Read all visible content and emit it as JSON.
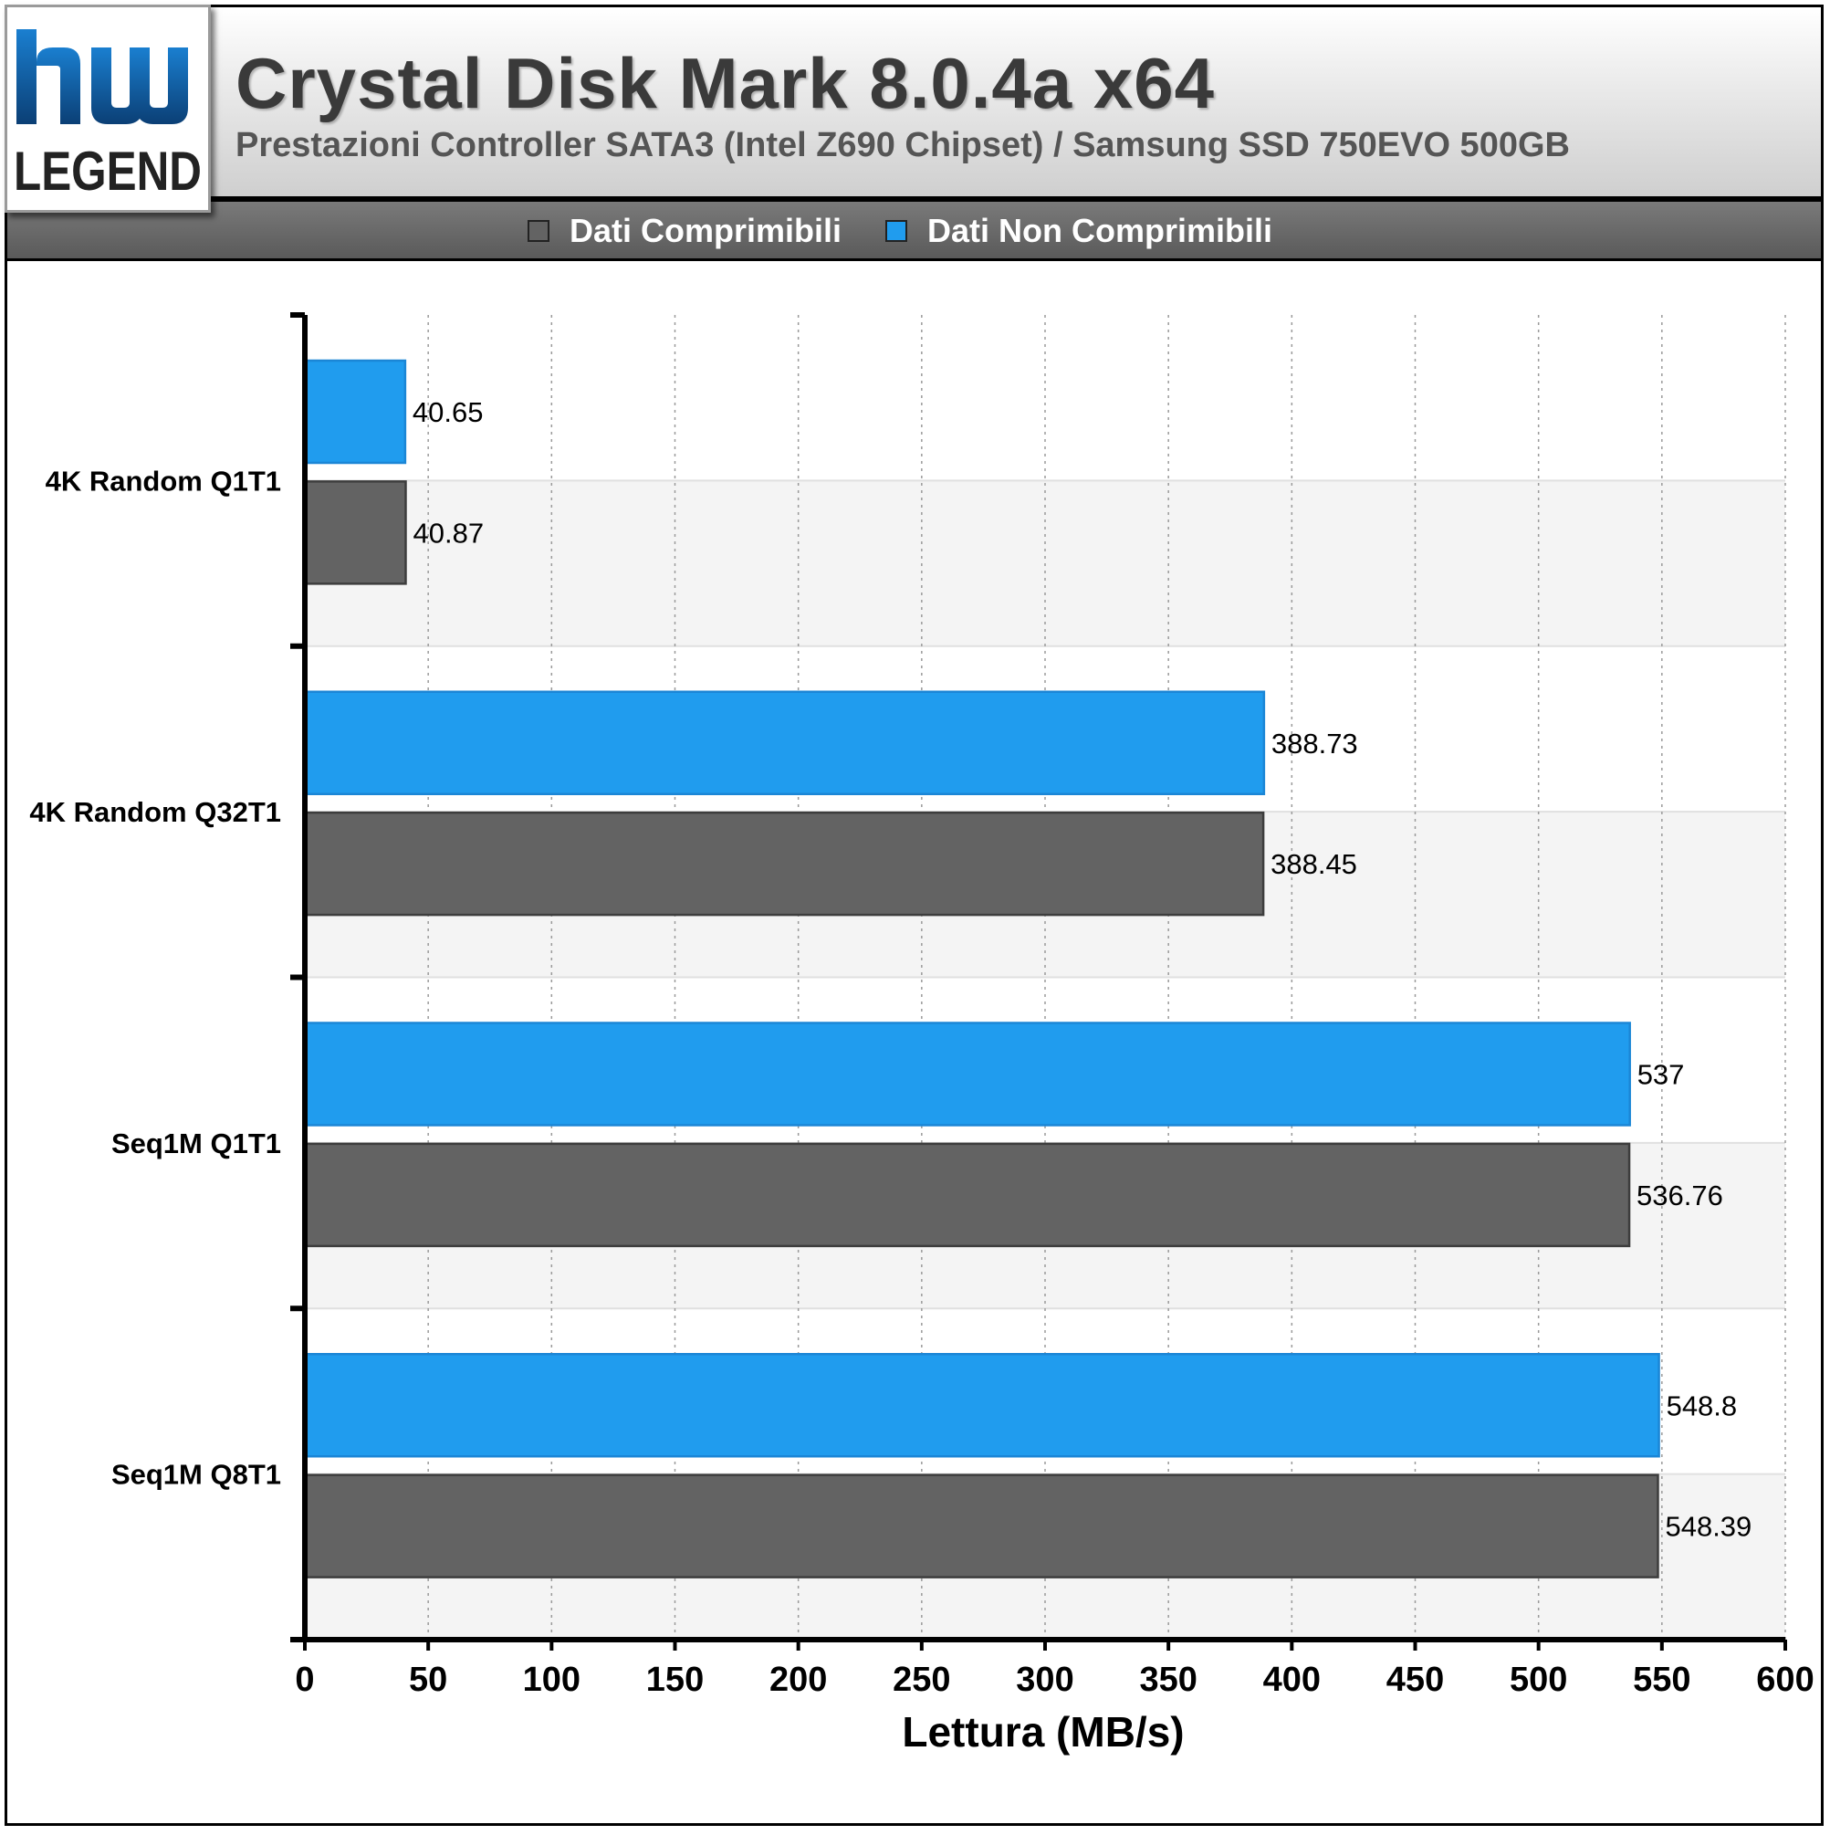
{
  "logo": {
    "mark": "hw",
    "text": "LEGEND"
  },
  "header": {
    "title": "Crystal Disk Mark 8.0.4a x64",
    "subtitle": "Prestazioni Controller SATA3 (Intel Z690 Chipset) / Samsung SSD 750EVO 500GB"
  },
  "legend": {
    "items": [
      {
        "label": "Dati Comprimibili",
        "color": "#636363"
      },
      {
        "label": "Dati Non Comprimibili",
        "color": "#209cee"
      }
    ]
  },
  "chart_data": {
    "type": "bar",
    "orientation": "horizontal",
    "categories": [
      "4K Random Q1T1",
      "4K Random Q32T1",
      "Seq1M Q1T1",
      "Seq1M Q8T1"
    ],
    "series": [
      {
        "name": "Dati Non Comprimibili",
        "color": "#209cee",
        "values": [
          40.65,
          388.73,
          537,
          548.8
        ]
      },
      {
        "name": "Dati Comprimibili",
        "color": "#636363",
        "values": [
          40.87,
          388.45,
          536.76,
          548.39
        ]
      }
    ],
    "value_labels": [
      [
        "40.65",
        "388.73",
        "537",
        "548.8"
      ],
      [
        "40.87",
        "388.45",
        "536.76",
        "548.39"
      ]
    ],
    "xlabel": "Lettura (MB/s)",
    "xlim": [
      0,
      600
    ],
    "xticks": [
      "0",
      "50",
      "100",
      "150",
      "200",
      "250",
      "300",
      "350",
      "400",
      "450",
      "500",
      "550",
      "600"
    ],
    "grid": true,
    "legend_position": "top"
  }
}
